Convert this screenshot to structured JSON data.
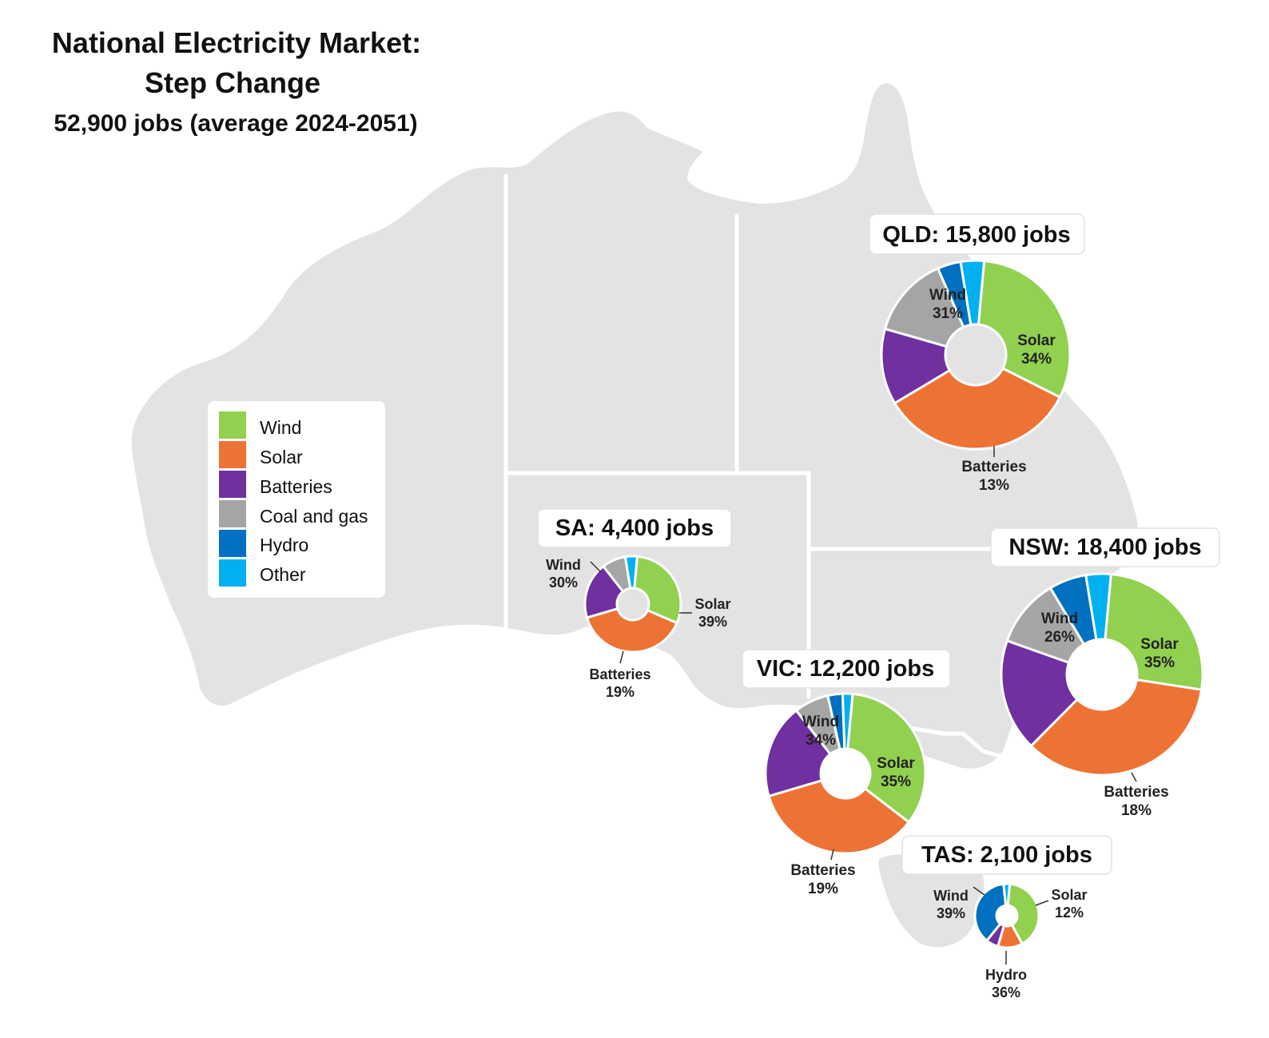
{
  "title": {
    "line1": "National Electricity Market:",
    "line2": "Step Change",
    "line3": "52,900 jobs (average 2024-2051)"
  },
  "colors": {
    "map_fill": "#e3e3e3",
    "border": "#ffffff"
  },
  "legend": [
    {
      "label": "Wind",
      "color": "#92d050"
    },
    {
      "label": "Solar",
      "color": "#ed7335"
    },
    {
      "label": "Batteries",
      "color": "#7030a0"
    },
    {
      "label": "Coal and gas",
      "color": "#a5a5a5"
    },
    {
      "label": "Hydro",
      "color": "#0070c0"
    },
    {
      "label": "Other",
      "color": "#00b0f0"
    }
  ],
  "chart_data": [
    {
      "type": "pie",
      "state": "QLD",
      "title": "QLD: 15,800 jobs",
      "categories": [
        "Wind",
        "Solar",
        "Batteries",
        "Coal and gas",
        "Hydro",
        "Other"
      ],
      "values": [
        31,
        34,
        13,
        14,
        4,
        4
      ],
      "labels": [
        {
          "name": "Wind",
          "value": "31%"
        },
        {
          "name": "Solar",
          "value": "34%"
        },
        {
          "name": "Batteries",
          "value": "13%"
        }
      ]
    },
    {
      "type": "pie",
      "state": "NSW",
      "title": "NSW: 18,400 jobs",
      "categories": [
        "Wind",
        "Solar",
        "Batteries",
        "Coal and gas",
        "Hydro",
        "Other"
      ],
      "values": [
        26,
        35,
        18,
        11,
        6,
        4
      ],
      "labels": [
        {
          "name": "Wind",
          "value": "26%"
        },
        {
          "name": "Solar",
          "value": "35%"
        },
        {
          "name": "Batteries",
          "value": "18%"
        }
      ]
    },
    {
      "type": "pie",
      "state": "SA",
      "title": "SA: 4,400 jobs",
      "categories": [
        "Wind",
        "Solar",
        "Batteries",
        "Coal and gas",
        "Hydro",
        "Other"
      ],
      "values": [
        30,
        39,
        19,
        8,
        0,
        4
      ],
      "labels": [
        {
          "name": "Wind",
          "value": "30%"
        },
        {
          "name": "Solar",
          "value": "39%"
        },
        {
          "name": "Batteries",
          "value": "19%"
        }
      ]
    },
    {
      "type": "pie",
      "state": "VIC",
      "title": "VIC: 12,200 jobs",
      "categories": [
        "Wind",
        "Solar",
        "Batteries",
        "Coal and gas",
        "Hydro",
        "Other"
      ],
      "values": [
        34,
        35,
        19,
        7,
        3,
        2
      ],
      "labels": [
        {
          "name": "Wind",
          "value": "34%"
        },
        {
          "name": "Solar",
          "value": "35%"
        },
        {
          "name": "Batteries",
          "value": "19%"
        }
      ]
    },
    {
      "type": "pie",
      "state": "TAS",
      "title": "TAS: 2,100 jobs",
      "categories": [
        "Wind",
        "Solar",
        "Batteries",
        "Coal and gas",
        "Hydro",
        "Other"
      ],
      "values": [
        39,
        12,
        6,
        0,
        36,
        3
      ],
      "labels": [
        {
          "name": "Wind",
          "value": "39%"
        },
        {
          "name": "Solar",
          "value": "12%"
        },
        {
          "name": "Hydro",
          "value": "36%"
        }
      ]
    }
  ]
}
